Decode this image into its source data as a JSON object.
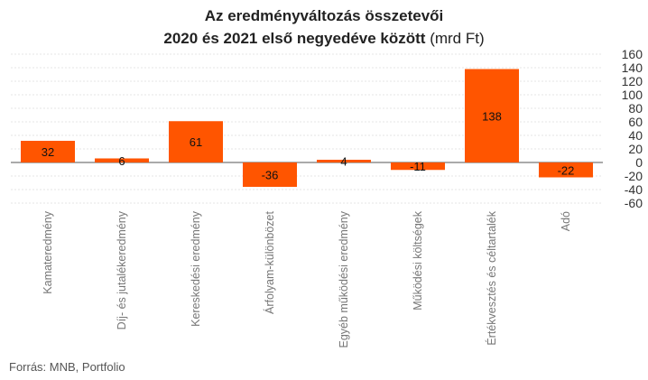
{
  "title_line1": "Az eredményváltozás összetevői",
  "title_line2_bold": "2020 és 2021 első negyedéve között",
  "title_line2_unit": "(mrd Ft)",
  "source": "Forrás: MNB, Portfolio",
  "colors": {
    "bar": "#FF5500",
    "grid": "#dddddd",
    "axis_text": "#333333",
    "category_text": "#777777"
  },
  "chart_data": {
    "type": "bar",
    "title": "Az eredményváltozás összetevői 2020 és 2021 első negyedéve között (mrd Ft)",
    "categories": [
      "Kamateredmény",
      "Díj- és jutalékeredmény",
      "Kereskedési eredmény",
      "Árfolyam-különbözet",
      "Egyéb működési eredmény",
      "Működési költségek",
      "Értékvesztés és céltartalék",
      "Adó"
    ],
    "values": [
      32,
      6,
      61,
      -36,
      4,
      -11,
      138,
      -22
    ],
    "labels": [
      "32",
      "6",
      "61",
      "-36",
      "4",
      "-11",
      "138",
      "-22"
    ],
    "ylim": [
      -60,
      160
    ],
    "yticks": [
      160,
      140,
      120,
      100,
      80,
      60,
      40,
      20,
      0,
      -20,
      -40,
      -60
    ],
    "y_axis_position": "right",
    "grid": true,
    "legend": "none"
  }
}
